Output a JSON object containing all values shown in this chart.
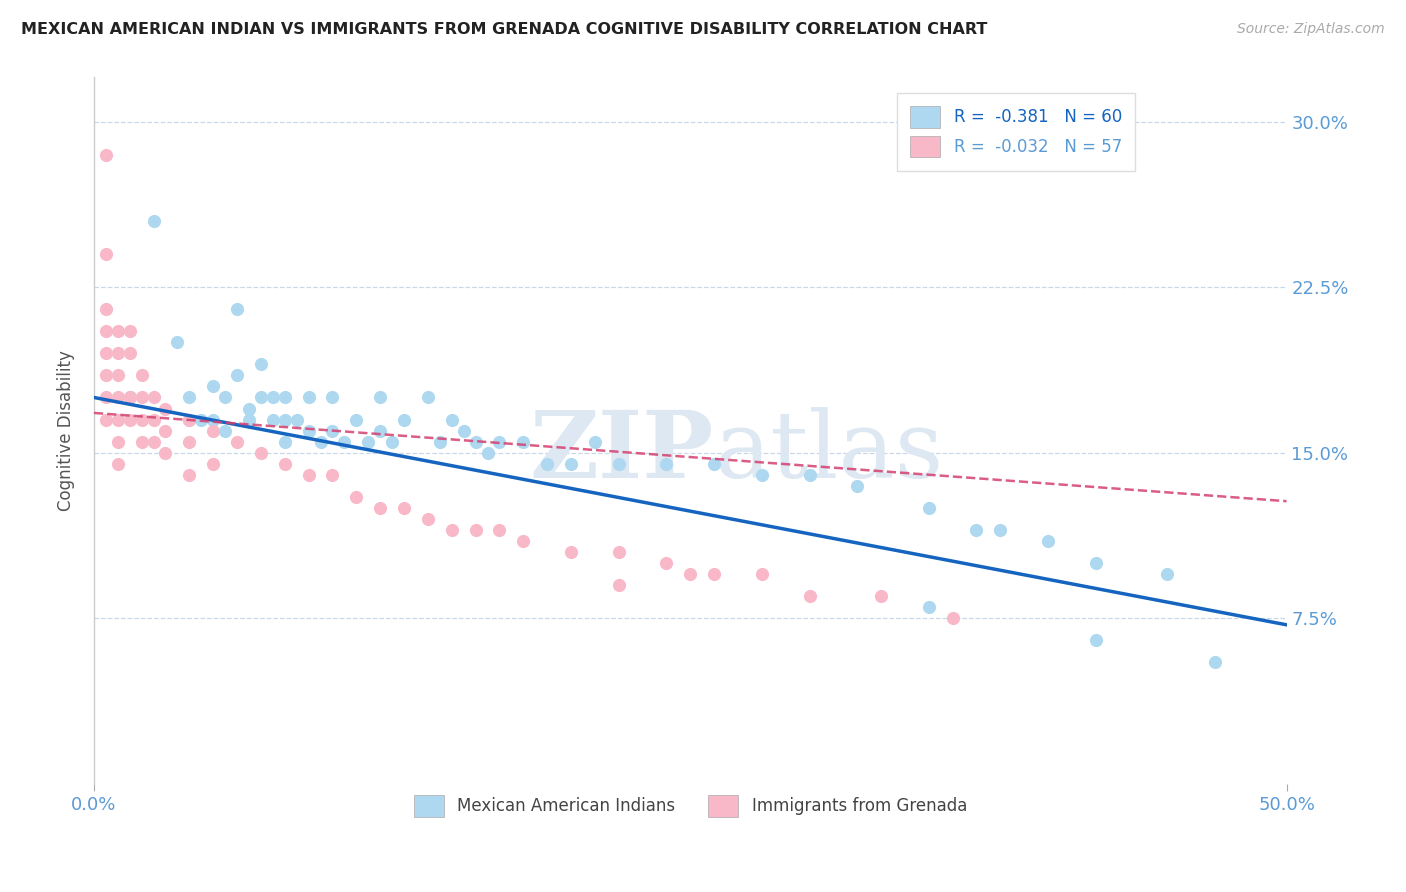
{
  "title": "MEXICAN AMERICAN INDIAN VS IMMIGRANTS FROM GRENADA COGNITIVE DISABILITY CORRELATION CHART",
  "source": "Source: ZipAtlas.com",
  "ylabel": "Cognitive Disability",
  "xlim": [
    0.0,
    0.5
  ],
  "ylim": [
    0.0,
    0.32
  ],
  "yticks": [
    0.075,
    0.15,
    0.225,
    0.3
  ],
  "ytick_labels": [
    "7.5%",
    "15.0%",
    "22.5%",
    "30.0%"
  ],
  "xticks": [
    0.0,
    0.5
  ],
  "xtick_labels": [
    "0.0%",
    "50.0%"
  ],
  "series1_label": "Mexican American Indians",
  "series2_label": "Immigrants from Grenada",
  "series1_color": "#add8f0",
  "series2_color": "#f9b8c8",
  "series1_line_color": "#1565c0",
  "series2_line_color": "#d44070",
  "legend_R1": "R =  -0.381",
  "legend_N1": "N = 60",
  "legend_R2": "R =  -0.032",
  "legend_N2": "N = 57",
  "title_color": "#222222",
  "axis_color": "#5b9bd5",
  "watermark_zip": "ZIP",
  "watermark_atlas": "atlas",
  "background_color": "#ffffff",
  "blue_x": [
    0.015,
    0.025,
    0.035,
    0.04,
    0.04,
    0.045,
    0.05,
    0.05,
    0.055,
    0.055,
    0.06,
    0.06,
    0.065,
    0.065,
    0.07,
    0.07,
    0.075,
    0.075,
    0.08,
    0.08,
    0.08,
    0.085,
    0.09,
    0.09,
    0.095,
    0.1,
    0.1,
    0.105,
    0.11,
    0.115,
    0.12,
    0.12,
    0.125,
    0.13,
    0.14,
    0.145,
    0.15,
    0.155,
    0.16,
    0.165,
    0.17,
    0.18,
    0.19,
    0.2,
    0.21,
    0.22,
    0.24,
    0.26,
    0.28,
    0.3,
    0.32,
    0.35,
    0.37,
    0.38,
    0.4,
    0.42,
    0.45,
    0.47,
    0.35,
    0.42
  ],
  "blue_y": [
    0.175,
    0.255,
    0.2,
    0.165,
    0.175,
    0.165,
    0.18,
    0.165,
    0.175,
    0.16,
    0.215,
    0.185,
    0.165,
    0.17,
    0.19,
    0.175,
    0.165,
    0.175,
    0.175,
    0.165,
    0.155,
    0.165,
    0.175,
    0.16,
    0.155,
    0.175,
    0.16,
    0.155,
    0.165,
    0.155,
    0.175,
    0.16,
    0.155,
    0.165,
    0.175,
    0.155,
    0.165,
    0.16,
    0.155,
    0.15,
    0.155,
    0.155,
    0.145,
    0.145,
    0.155,
    0.145,
    0.145,
    0.145,
    0.14,
    0.14,
    0.135,
    0.125,
    0.115,
    0.115,
    0.11,
    0.1,
    0.095,
    0.055,
    0.08,
    0.065
  ],
  "pink_x": [
    0.005,
    0.005,
    0.005,
    0.005,
    0.005,
    0.005,
    0.005,
    0.005,
    0.01,
    0.01,
    0.01,
    0.01,
    0.01,
    0.01,
    0.01,
    0.015,
    0.015,
    0.015,
    0.015,
    0.02,
    0.02,
    0.02,
    0.02,
    0.025,
    0.025,
    0.025,
    0.03,
    0.03,
    0.03,
    0.04,
    0.04,
    0.04,
    0.05,
    0.05,
    0.06,
    0.07,
    0.08,
    0.09,
    0.1,
    0.11,
    0.12,
    0.13,
    0.14,
    0.15,
    0.16,
    0.17,
    0.18,
    0.2,
    0.22,
    0.24,
    0.26,
    0.28,
    0.3,
    0.33,
    0.36,
    0.22,
    0.25
  ],
  "pink_y": [
    0.285,
    0.24,
    0.215,
    0.205,
    0.195,
    0.185,
    0.175,
    0.165,
    0.205,
    0.195,
    0.185,
    0.175,
    0.165,
    0.155,
    0.145,
    0.205,
    0.195,
    0.175,
    0.165,
    0.185,
    0.175,
    0.165,
    0.155,
    0.175,
    0.165,
    0.155,
    0.17,
    0.16,
    0.15,
    0.165,
    0.155,
    0.14,
    0.16,
    0.145,
    0.155,
    0.15,
    0.145,
    0.14,
    0.14,
    0.13,
    0.125,
    0.125,
    0.12,
    0.115,
    0.115,
    0.115,
    0.11,
    0.105,
    0.105,
    0.1,
    0.095,
    0.095,
    0.085,
    0.085,
    0.075,
    0.09,
    0.095
  ],
  "blue_trend_x0": 0.0,
  "blue_trend_y0": 0.175,
  "blue_trend_x1": 0.5,
  "blue_trend_y1": 0.072,
  "pink_trend_x0": 0.0,
  "pink_trend_y0": 0.168,
  "pink_trend_x1": 0.5,
  "pink_trend_y1": 0.128
}
